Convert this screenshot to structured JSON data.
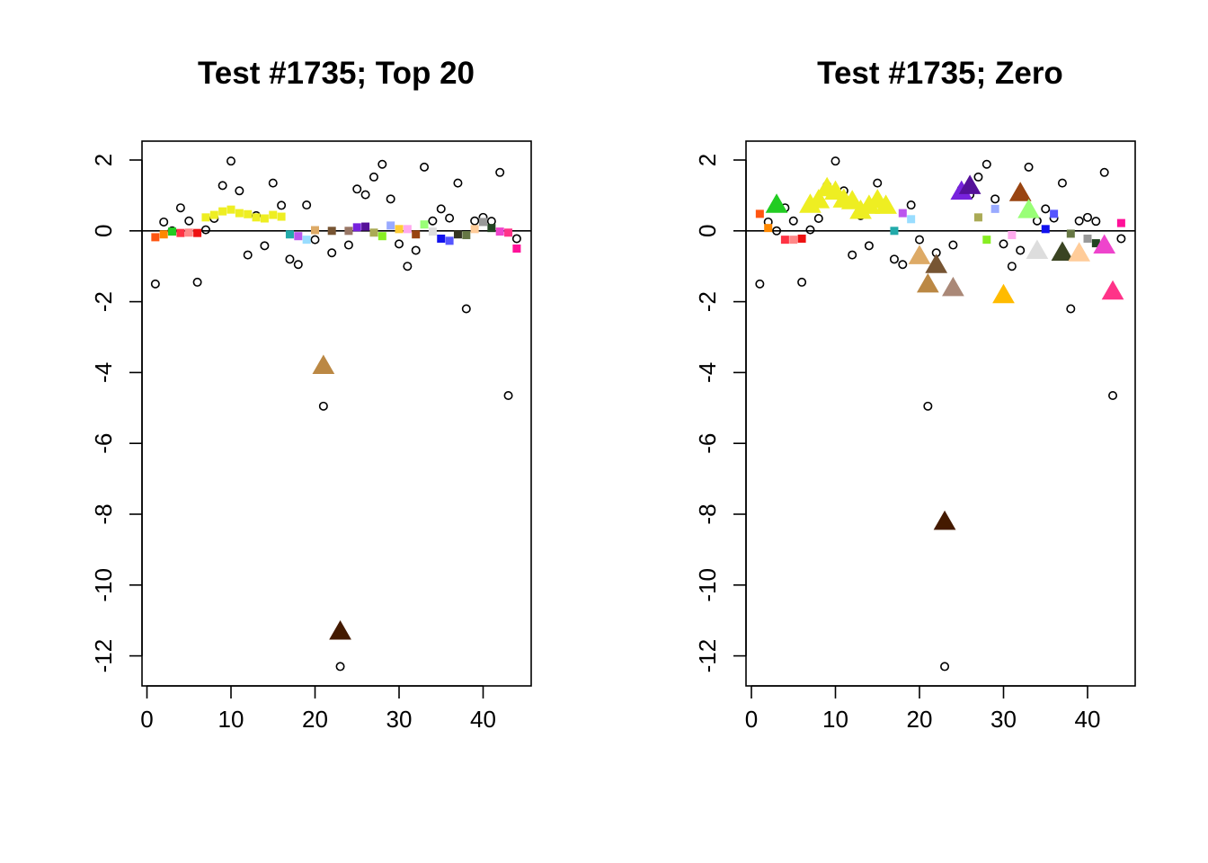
{
  "chart_data": [
    {
      "type": "scatter",
      "title": "Test #1735; Top 20",
      "xlabel": "",
      "ylabel": "",
      "xlim": [
        0,
        45
      ],
      "ylim": [
        -12.5,
        2.5
      ],
      "xticks": [
        0,
        10,
        20,
        30,
        40
      ],
      "yticks": [
        2,
        0,
        -2,
        -4,
        -6,
        -8,
        -10,
        -12
      ],
      "x_tick_labels": [
        "0",
        "10",
        "20",
        "30",
        "40"
      ],
      "y_tick_labels": [
        "2",
        "0",
        "-2",
        "-4",
        "-6",
        "-8",
        "-10",
        "-12"
      ],
      "reference_line_y": 0,
      "series": [
        {
          "marker": "open-circle",
          "color": "#000000",
          "x": [
            1,
            2,
            3,
            4,
            5,
            6,
            7,
            8,
            9,
            10,
            11,
            12,
            13,
            14,
            15,
            16,
            17,
            18,
            19,
            20,
            21,
            22,
            23,
            24,
            25,
            26,
            27,
            28,
            29,
            30,
            31,
            32,
            33,
            34,
            35,
            36,
            37,
            38,
            39,
            40,
            41,
            42,
            43,
            44
          ],
          "y": [
            -1.5,
            0.25,
            0,
            0.65,
            0.28,
            -1.45,
            0.03,
            0.35,
            1.28,
            1.97,
            1.13,
            -0.68,
            0.43,
            -0.42,
            1.35,
            0.72,
            -0.8,
            -0.95,
            0.73,
            -0.25,
            -4.95,
            -0.62,
            -12.3,
            -0.4,
            1.18,
            1.02,
            1.52,
            1.88,
            0.9,
            -0.37,
            -1.0,
            -0.55,
            1.8,
            0.28,
            0.62,
            0.36,
            1.35,
            -2.2,
            0.28,
            0.38,
            0.27,
            1.65,
            -4.65,
            -0.22
          ]
        },
        {
          "marker": "filled-square",
          "points": [
            {
              "x": 1,
              "y": -0.18,
              "color": "#ff5511"
            },
            {
              "x": 2,
              "y": -0.1,
              "color": "#ff8800"
            },
            {
              "x": 3,
              "y": -0.02,
              "color": "#22cc22"
            },
            {
              "x": 4,
              "y": -0.06,
              "color": "#ff3344"
            },
            {
              "x": 5,
              "y": -0.05,
              "color": "#ff8888"
            },
            {
              "x": 6,
              "y": -0.06,
              "color": "#ee1111"
            },
            {
              "x": 7,
              "y": 0.38,
              "color": "#eeee22"
            },
            {
              "x": 8,
              "y": 0.45,
              "color": "#eeee22"
            },
            {
              "x": 9,
              "y": 0.55,
              "color": "#eeee22"
            },
            {
              "x": 10,
              "y": 0.6,
              "color": "#eeee22"
            },
            {
              "x": 11,
              "y": 0.5,
              "color": "#eeee22"
            },
            {
              "x": 12,
              "y": 0.47,
              "color": "#eeee22"
            },
            {
              "x": 13,
              "y": 0.38,
              "color": "#eeee22"
            },
            {
              "x": 14,
              "y": 0.35,
              "color": "#eeee22"
            },
            {
              "x": 15,
              "y": 0.45,
              "color": "#eeee22"
            },
            {
              "x": 16,
              "y": 0.4,
              "color": "#eeee22"
            },
            {
              "x": 17,
              "y": -0.1,
              "color": "#22aaaa"
            },
            {
              "x": 18,
              "y": -0.15,
              "color": "#bb55ee"
            },
            {
              "x": 19,
              "y": -0.25,
              "color": "#99ddff"
            },
            {
              "x": 20,
              "y": 0.02,
              "color": "#ddaa66"
            },
            {
              "x": 22,
              "y": 0.0,
              "color": "#775533"
            },
            {
              "x": 24,
              "y": 0.0,
              "color": "#997766"
            },
            {
              "x": 25,
              "y": 0.1,
              "color": "#7722dd"
            },
            {
              "x": 26,
              "y": 0.12,
              "color": "#551199"
            },
            {
              "x": 27,
              "y": -0.05,
              "color": "#aaaa55"
            },
            {
              "x": 28,
              "y": -0.15,
              "color": "#88ee22"
            },
            {
              "x": 29,
              "y": 0.15,
              "color": "#99aaff"
            },
            {
              "x": 30,
              "y": 0.05,
              "color": "#ffcc33"
            },
            {
              "x": 31,
              "y": 0.05,
              "color": "#ffaaee"
            },
            {
              "x": 32,
              "y": -0.1,
              "color": "#994411"
            },
            {
              "x": 33,
              "y": 0.18,
              "color": "#99ff77"
            },
            {
              "x": 34,
              "y": -0.02,
              "color": "#dddddd"
            },
            {
              "x": 35,
              "y": -0.22,
              "color": "#1111ee"
            },
            {
              "x": 36,
              "y": -0.28,
              "color": "#5555ff"
            },
            {
              "x": 37,
              "y": -0.1,
              "color": "#333322"
            },
            {
              "x": 38,
              "y": -0.12,
              "color": "#667744"
            },
            {
              "x": 39,
              "y": 0.05,
              "color": "#ffcc99"
            },
            {
              "x": 40,
              "y": 0.25,
              "color": "#999999"
            },
            {
              "x": 41,
              "y": 0.08,
              "color": "#224422"
            },
            {
              "x": 42,
              "y": -0.02,
              "color": "#ee44cc"
            },
            {
              "x": 43,
              "y": -0.05,
              "color": "#ff3388"
            },
            {
              "x": 44,
              "y": -0.5,
              "color": "#ff1199"
            }
          ]
        },
        {
          "marker": "filled-triangle",
          "points": [
            {
              "x": 21,
              "y": -3.8,
              "color": "#bb8844"
            },
            {
              "x": 23,
              "y": -11.3,
              "color": "#441a00"
            }
          ]
        }
      ]
    },
    {
      "type": "scatter",
      "title": "Test #1735; Zero",
      "xlabel": "",
      "ylabel": "",
      "xlim": [
        0,
        45
      ],
      "ylim": [
        -12.5,
        2.5
      ],
      "xticks": [
        0,
        10,
        20,
        30,
        40
      ],
      "yticks": [
        2,
        0,
        -2,
        -4,
        -6,
        -8,
        -10,
        -12
      ],
      "x_tick_labels": [
        "0",
        "10",
        "20",
        "30",
        "40"
      ],
      "y_tick_labels": [
        "2",
        "0",
        "-2",
        "-4",
        "-6",
        "-8",
        "-10",
        "-12"
      ],
      "reference_line_y": 0,
      "series": [
        {
          "marker": "open-circle",
          "color": "#000000",
          "x": [
            1,
            2,
            3,
            4,
            5,
            6,
            7,
            8,
            9,
            10,
            11,
            12,
            13,
            14,
            15,
            16,
            17,
            18,
            19,
            20,
            21,
            22,
            23,
            24,
            25,
            26,
            27,
            28,
            29,
            30,
            31,
            32,
            33,
            34,
            35,
            36,
            37,
            38,
            39,
            40,
            41,
            42,
            43,
            44
          ],
          "y": [
            -1.5,
            0.25,
            0,
            0.65,
            0.28,
            -1.45,
            0.03,
            0.35,
            1.28,
            1.97,
            1.13,
            -0.68,
            0.43,
            -0.42,
            1.35,
            0.72,
            -0.8,
            -0.95,
            0.73,
            -0.25,
            -4.95,
            -0.62,
            -12.3,
            -0.4,
            1.18,
            1.02,
            1.52,
            1.88,
            0.9,
            -0.37,
            -1.0,
            -0.55,
            1.8,
            0.28,
            0.62,
            0.36,
            1.35,
            -2.2,
            0.28,
            0.38,
            0.27,
            1.65,
            -4.65,
            -0.22
          ]
        },
        {
          "marker": "filled-square",
          "points": [
            {
              "x": 1,
              "y": 0.48,
              "color": "#ff5511"
            },
            {
              "x": 2,
              "y": 0.08,
              "color": "#ff8800"
            },
            {
              "x": 4,
              "y": -0.25,
              "color": "#ff3344"
            },
            {
              "x": 5,
              "y": -0.25,
              "color": "#ff8888"
            },
            {
              "x": 6,
              "y": -0.22,
              "color": "#ee1111"
            },
            {
              "x": 17,
              "y": 0.0,
              "color": "#22aaaa"
            },
            {
              "x": 18,
              "y": 0.5,
              "color": "#bb55ee"
            },
            {
              "x": 19,
              "y": 0.33,
              "color": "#99ddff"
            },
            {
              "x": 27,
              "y": 0.38,
              "color": "#aaaa55"
            },
            {
              "x": 28,
              "y": -0.25,
              "color": "#88ee22"
            },
            {
              "x": 29,
              "y": 0.62,
              "color": "#99aaff"
            },
            {
              "x": 31,
              "y": -0.12,
              "color": "#ffaaee"
            },
            {
              "x": 35,
              "y": 0.05,
              "color": "#1111ee"
            },
            {
              "x": 36,
              "y": 0.48,
              "color": "#5555ff"
            },
            {
              "x": 38,
              "y": -0.08,
              "color": "#667744"
            },
            {
              "x": 40,
              "y": -0.22,
              "color": "#999999"
            },
            {
              "x": 41,
              "y": -0.35,
              "color": "#224422"
            },
            {
              "x": 44,
              "y": 0.22,
              "color": "#ff1199"
            }
          ]
        },
        {
          "marker": "filled-triangle",
          "points": [
            {
              "x": 3,
              "y": 0.75,
              "color": "#22cc22"
            },
            {
              "x": 7,
              "y": 0.75,
              "color": "#eeee22"
            },
            {
              "x": 8,
              "y": 0.88,
              "color": "#eeee22"
            },
            {
              "x": 9,
              "y": 1.22,
              "color": "#eeee22"
            },
            {
              "x": 10,
              "y": 1.12,
              "color": "#eeee22"
            },
            {
              "x": 11,
              "y": 0.9,
              "color": "#eeee22"
            },
            {
              "x": 12,
              "y": 0.85,
              "color": "#eeee22"
            },
            {
              "x": 13,
              "y": 0.58,
              "color": "#eeee22"
            },
            {
              "x": 14,
              "y": 0.72,
              "color": "#eeee22"
            },
            {
              "x": 15,
              "y": 0.88,
              "color": "#eeee22"
            },
            {
              "x": 16,
              "y": 0.72,
              "color": "#eeee22"
            },
            {
              "x": 20,
              "y": -0.7,
              "color": "#ddaa66"
            },
            {
              "x": 21,
              "y": -1.5,
              "color": "#bb8844"
            },
            {
              "x": 22,
              "y": -0.95,
              "color": "#775533"
            },
            {
              "x": 23,
              "y": -8.2,
              "color": "#441a00"
            },
            {
              "x": 24,
              "y": -1.6,
              "color": "#aa8877"
            },
            {
              "x": 25,
              "y": 1.12,
              "color": "#7722dd"
            },
            {
              "x": 26,
              "y": 1.28,
              "color": "#551199"
            },
            {
              "x": 30,
              "y": -1.8,
              "color": "#ffbb00"
            },
            {
              "x": 32,
              "y": 1.08,
              "color": "#994411"
            },
            {
              "x": 33,
              "y": 0.6,
              "color": "#99ff77"
            },
            {
              "x": 34,
              "y": -0.55,
              "color": "#dddddd"
            },
            {
              "x": 37,
              "y": -0.6,
              "color": "#3a4422"
            },
            {
              "x": 39,
              "y": -0.62,
              "color": "#ffcc99"
            },
            {
              "x": 42,
              "y": -0.4,
              "color": "#ee44cc"
            },
            {
              "x": 43,
              "y": -1.7,
              "color": "#ff3388"
            }
          ]
        }
      ]
    }
  ]
}
